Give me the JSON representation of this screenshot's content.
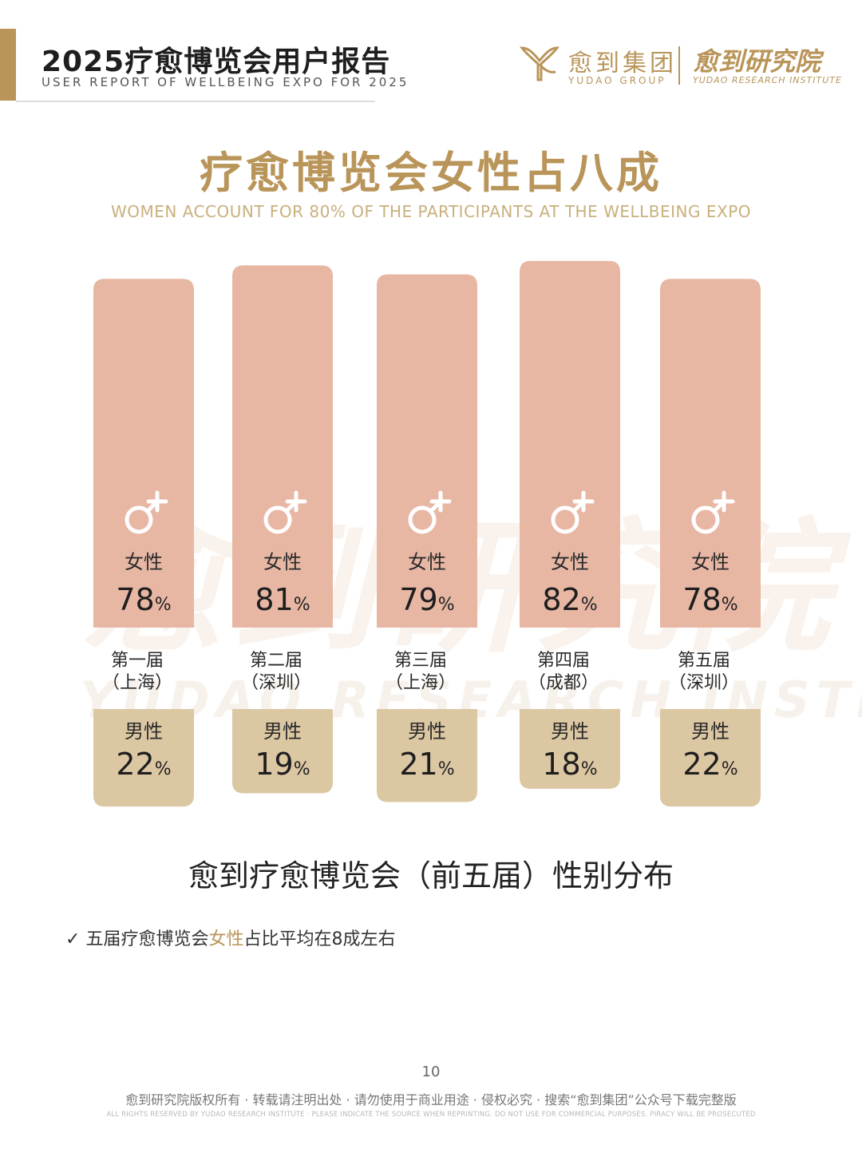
{
  "header": {
    "title": "2025疗愈博览会用户报告",
    "subtitle": "USER REPORT OF WELLBEING EXPO FOR 2025"
  },
  "brand": {
    "group_cn": "愈到集团",
    "group_en": "YUDAO GROUP",
    "institute_cn": "愈到研究院",
    "institute_en": "YUDAO RESEARCH INSTITUTE"
  },
  "section": {
    "title": "疗愈博览会女性占八成",
    "subtitle": "WOMEN ACCOUNT FOR 80% OF THE PARTICIPANTS AT THE WELLBEING EXPO"
  },
  "watermark": {
    "cn": "愈到研究院",
    "en": "YUDAO RESEARCH INSTITUTE"
  },
  "colors": {
    "accent_gold": "#b9955a",
    "female_bar": "#e7b7a4",
    "male_bar": "#dcc7a3"
  },
  "icons": {
    "female": "female-symbol-icon",
    "check": "check-mark-icon"
  },
  "chart_data": {
    "type": "bar",
    "title": "愈到疗愈博览会（前五届）性别分布",
    "categories": [
      {
        "line1": "第一届",
        "line2": "（上海）"
      },
      {
        "line1": "第二届",
        "line2": "（深圳）"
      },
      {
        "line1": "第三届",
        "line2": "（上海）"
      },
      {
        "line1": "第四届",
        "line2": "（成都）"
      },
      {
        "line1": "第五届",
        "line2": "（深圳）"
      }
    ],
    "series": [
      {
        "name": "女性",
        "values": [
          78,
          81,
          79,
          82,
          78
        ],
        "color": "#e7b7a4"
      },
      {
        "name": "男性",
        "values": [
          22,
          19,
          21,
          18,
          22
        ],
        "color": "#dcc7a3"
      }
    ],
    "unit": "%",
    "orientation": "female bars rise above the labels, male bars hang below"
  },
  "note": {
    "check": "✓",
    "before": "五届疗愈博览会",
    "highlight": "女性",
    "after": "占比平均在8成左右"
  },
  "footer": {
    "page_number": "10",
    "copyright_cn": "愈到研究院版权所有 · 转载请注明出处 · 请勿使用于商业用途 · 侵权必究 · 搜索“愈到集团”公众号下载完整版",
    "copyright_en": "ALL RIGHTS RESERVED BY YUDAO RESEARCH INSTITUTE · PLEASE INDICATE THE SOURCE WHEN REPRINTING. DO NOT USE FOR COMMERCIAL PURPOSES. PIRACY WILL BE PROSECUTED"
  }
}
